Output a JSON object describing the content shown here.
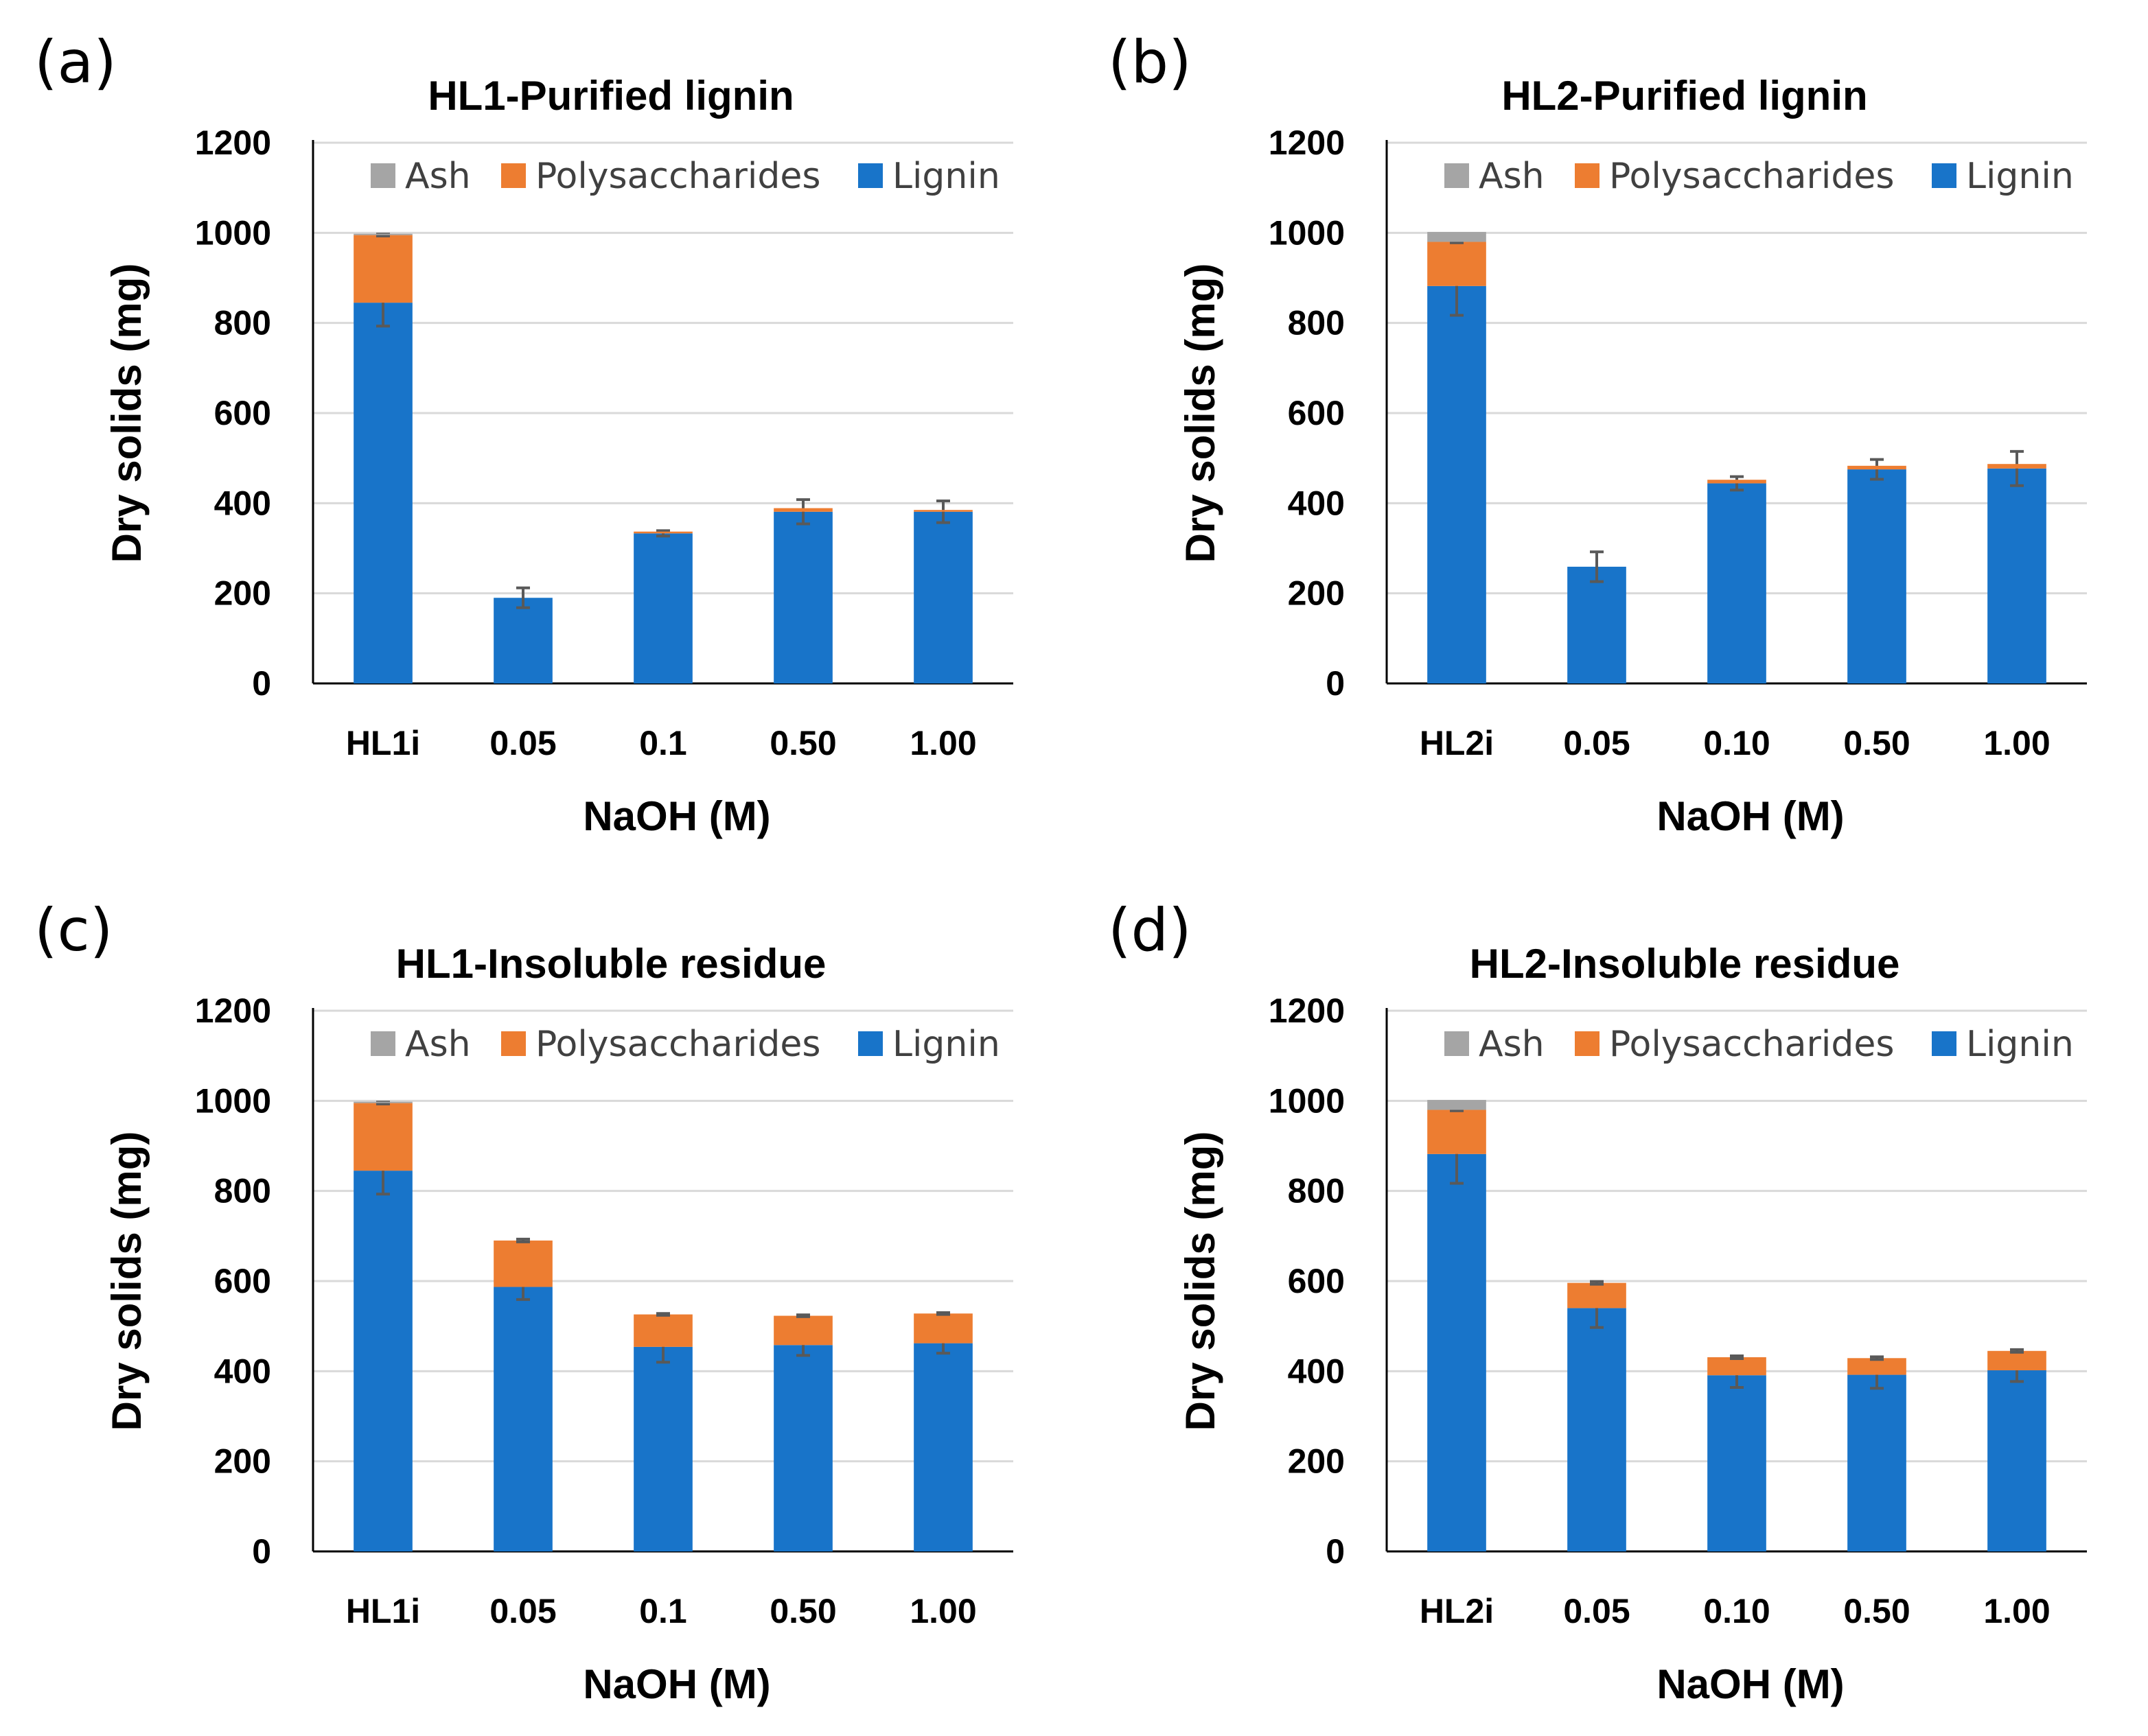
{
  "legend": [
    "Ash",
    "Polysaccharides",
    "Lignin"
  ],
  "colors": {
    "ash": "#a5a5a5",
    "poly": "#ed7d31",
    "lignin": "#1874c9"
  },
  "chart_data": [
    {
      "panel_label": "(a)",
      "type": "bar",
      "stacked": true,
      "title": "HL1-Purified lignin",
      "xlabel": "NaOH (M)",
      "ylabel": "Dry solids (mg)",
      "ylim": [
        0,
        1200
      ],
      "yticks": [
        "0",
        "200",
        "400",
        "600",
        "800",
        "1000",
        "1200"
      ],
      "categories": [
        "HL1i",
        "0.05",
        "0.1",
        "0.50",
        "1.00"
      ],
      "series": [
        {
          "name": "Lignin",
          "values": [
            845,
            190,
            333,
            381,
            381
          ],
          "errors": [
            52,
            22,
            6,
            27,
            24
          ]
        },
        {
          "name": "Polysaccharides",
          "values": [
            150,
            0,
            4,
            8,
            4
          ],
          "errors": [
            2,
            0,
            0,
            0,
            0
          ]
        },
        {
          "name": "Ash",
          "values": [
            3,
            0,
            0,
            0,
            0
          ],
          "errors": [
            0,
            0,
            0,
            0,
            0
          ]
        }
      ]
    },
    {
      "panel_label": "(b)",
      "type": "bar",
      "stacked": true,
      "title": "HL2-Purified lignin",
      "xlabel": "NaOH (M)",
      "ylabel": "Dry solids (mg)",
      "ylim": [
        0,
        1200
      ],
      "yticks": [
        "0",
        "200",
        "400",
        "600",
        "800",
        "1000",
        "1200"
      ],
      "categories": [
        "HL2i",
        "0.05",
        "0.10",
        "0.50",
        "1.00"
      ],
      "series": [
        {
          "name": "Lignin",
          "values": [
            882,
            259,
            444,
            475,
            477
          ],
          "errors": [
            65,
            33,
            15,
            22,
            38
          ]
        },
        {
          "name": "Polysaccharides",
          "values": [
            98,
            0,
            8,
            8,
            10
          ],
          "errors": [
            2,
            0,
            0,
            0,
            0
          ]
        },
        {
          "name": "Ash",
          "values": [
            22,
            0,
            0,
            0,
            0
          ],
          "errors": [
            0,
            0,
            0,
            0,
            0
          ]
        }
      ]
    },
    {
      "panel_label": "(c)",
      "type": "bar",
      "stacked": true,
      "title": "HL1-Insoluble residue",
      "xlabel": "NaOH (M)",
      "ylabel": "Dry solids (mg)",
      "ylim": [
        0,
        1200
      ],
      "yticks": [
        "0",
        "200",
        "400",
        "600",
        "800",
        "1000",
        "1200"
      ],
      "categories": [
        "HL1i",
        "0.05",
        "0.1",
        "0.50",
        "1.00"
      ],
      "series": [
        {
          "name": "Lignin",
          "values": [
            845,
            587,
            454,
            458,
            462
          ],
          "errors": [
            52,
            28,
            34,
            23,
            22
          ]
        },
        {
          "name": "Polysaccharides",
          "values": [
            150,
            103,
            72,
            65,
            66
          ],
          "errors": [
            2,
            3,
            2,
            2,
            2
          ]
        },
        {
          "name": "Ash",
          "values": [
            3,
            0,
            0,
            0,
            0
          ],
          "errors": [
            0,
            0,
            0,
            0,
            0
          ]
        }
      ]
    },
    {
      "panel_label": "(d)",
      "type": "bar",
      "stacked": true,
      "title": "HL2-Insoluble residue",
      "xlabel": "NaOH (M)",
      "ylabel": "Dry solids (mg)",
      "ylim": [
        0,
        1200
      ],
      "yticks": [
        "0",
        "200",
        "400",
        "600",
        "800",
        "1000",
        "1200"
      ],
      "categories": [
        "HL2i",
        "0.05",
        "0.10",
        "0.50",
        "1.00"
      ],
      "series": [
        {
          "name": "Lignin",
          "values": [
            882,
            540,
            391,
            392,
            402
          ],
          "errors": [
            65,
            43,
            27,
            30,
            25
          ]
        },
        {
          "name": "Polysaccharides",
          "values": [
            98,
            56,
            40,
            37,
            43
          ],
          "errors": [
            2,
            3,
            3,
            3,
            3
          ]
        },
        {
          "name": "Ash",
          "values": [
            22,
            0,
            0,
            0,
            0
          ],
          "errors": [
            0,
            0,
            0,
            0,
            0
          ]
        }
      ]
    }
  ]
}
